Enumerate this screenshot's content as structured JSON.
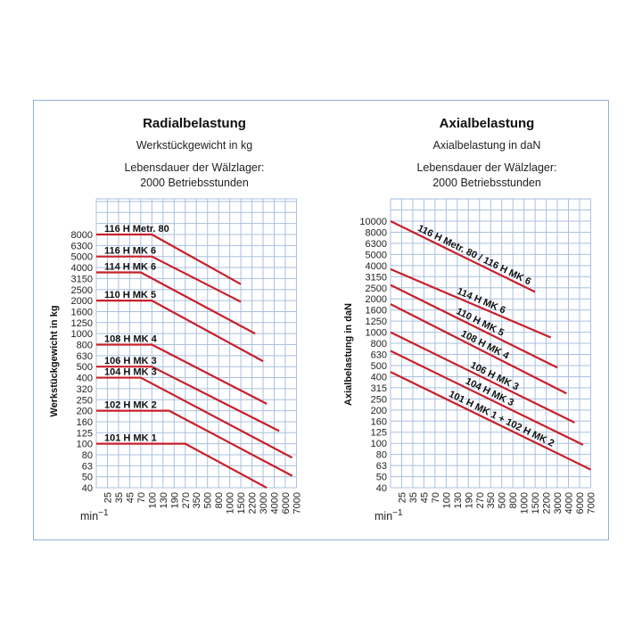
{
  "chart_data": [
    {
      "type": "line",
      "title": "Radialbelastung",
      "subtitle": "Werkstückgewicht in kg",
      "note_line1": "Lebensdauer der Wälzlager:",
      "note_line2": "2000 Betriebsstunden",
      "ylabel": "Werkstückgewicht in kg",
      "xlabel": "min",
      "xlabel_exp": "−1",
      "x_scale": "categorical-log",
      "y_scale": "categorical-log",
      "x_ticks": [
        "25",
        "35",
        "45",
        "70",
        "100",
        "130",
        "190",
        "270",
        "350",
        "500",
        "800",
        "1000",
        "1500",
        "2200",
        "3000",
        "4000",
        "6000",
        "7000"
      ],
      "y_ticks": [
        "8000",
        "6300",
        "5000",
        "4000",
        "3150",
        "2500",
        "2000",
        "1600",
        "1250",
        "1000",
        "800",
        "630",
        "500",
        "400",
        "320",
        "250",
        "200",
        "160",
        "125",
        "100",
        "80",
        "63",
        "50",
        "40"
      ],
      "grid": true,
      "series_color": "#c8202a",
      "series": [
        {
          "name": "116 H Metr. 80",
          "points": [
            [
              null,
              8000
            ],
            [
              100,
              8000
            ],
            [
              1500,
              2800
            ]
          ]
        },
        {
          "name": "116 H MK 6",
          "points": [
            [
              null,
              5000
            ],
            [
              100,
              5000
            ],
            [
              1500,
              1950
            ]
          ]
        },
        {
          "name": "114 H MK 6",
          "points": [
            [
              null,
              3600
            ],
            [
              70,
              3600
            ],
            [
              2400,
              1000
            ]
          ]
        },
        {
          "name": "110 H MK 5",
          "points": [
            [
              null,
              2000
            ],
            [
              100,
              2000
            ],
            [
              3000,
              560
            ]
          ]
        },
        {
          "name": "108 H MK 4",
          "points": [
            [
              null,
              800
            ],
            [
              100,
              800
            ],
            [
              3300,
              230
            ]
          ]
        },
        {
          "name": "106 H MK 3",
          "points": [
            [
              null,
              500
            ],
            [
              100,
              500
            ],
            [
              4800,
              130
            ]
          ]
        },
        {
          "name": "104 H MK 3",
          "points": [
            [
              null,
              400
            ],
            [
              70,
              400
            ],
            [
              6600,
              75
            ]
          ]
        },
        {
          "name": "102 H MK 2",
          "points": [
            [
              null,
              200
            ],
            [
              160,
              200
            ],
            [
              6600,
              51
            ]
          ]
        },
        {
          "name": "101 H MK 1",
          "points": [
            [
              null,
              100
            ],
            [
              270,
              100
            ],
            [
              3300,
              40
            ]
          ]
        }
      ]
    },
    {
      "type": "line",
      "title": "Axialbelastung",
      "subtitle": "Axialbelastung in daN",
      "note_line1": "Lebensdauer der Wälzlager:",
      "note_line2": "2000 Betriebsstunden",
      "ylabel": "Axialbelastung in daN",
      "xlabel": "min",
      "xlabel_exp": "−1",
      "x_scale": "categorical-log",
      "y_scale": "categorical-log",
      "x_ticks": [
        "25",
        "35",
        "45",
        "70",
        "100",
        "130",
        "190",
        "270",
        "350",
        "500",
        "800",
        "1000",
        "1500",
        "2200",
        "3000",
        "4000",
        "6000",
        "7000"
      ],
      "y_ticks": [
        "10000",
        "8000",
        "6300",
        "5000",
        "4000",
        "3150",
        "2500",
        "2000",
        "1600",
        "1250",
        "1000",
        "800",
        "630",
        "500",
        "400",
        "315",
        "250",
        "200",
        "160",
        "125",
        "100",
        "80",
        "63",
        "50",
        "40"
      ],
      "grid": true,
      "series_color": "#c8202a",
      "series": [
        {
          "name": "116 H Metr. 80 / 116 H MK 6",
          "points": [
            [
              null,
              10000
            ],
            [
              1500,
              2300
            ]
          ]
        },
        {
          "name": "114 H MK 6",
          "points": [
            [
              null,
              3700
            ],
            [
              2500,
              900
            ]
          ]
        },
        {
          "name": "110 H MK 5",
          "points": [
            [
              null,
              2650
            ],
            [
              3000,
              480
            ]
          ]
        },
        {
          "name": "108 H MK 4",
          "points": [
            [
              null,
              1800
            ],
            [
              3800,
              280
            ]
          ]
        },
        {
          "name": "106 H MK 3",
          "points": [
            [
              null,
              1000
            ],
            [
              5000,
              155
            ]
          ]
        },
        {
          "name": "104 H MK 3",
          "points": [
            [
              null,
              680
            ],
            [
              6300,
              97
            ]
          ]
        },
        {
          "name": "101 H MK 1 + 102 H MK 2",
          "points": [
            [
              null,
              440
            ],
            [
              7000,
              58
            ]
          ]
        }
      ]
    }
  ]
}
